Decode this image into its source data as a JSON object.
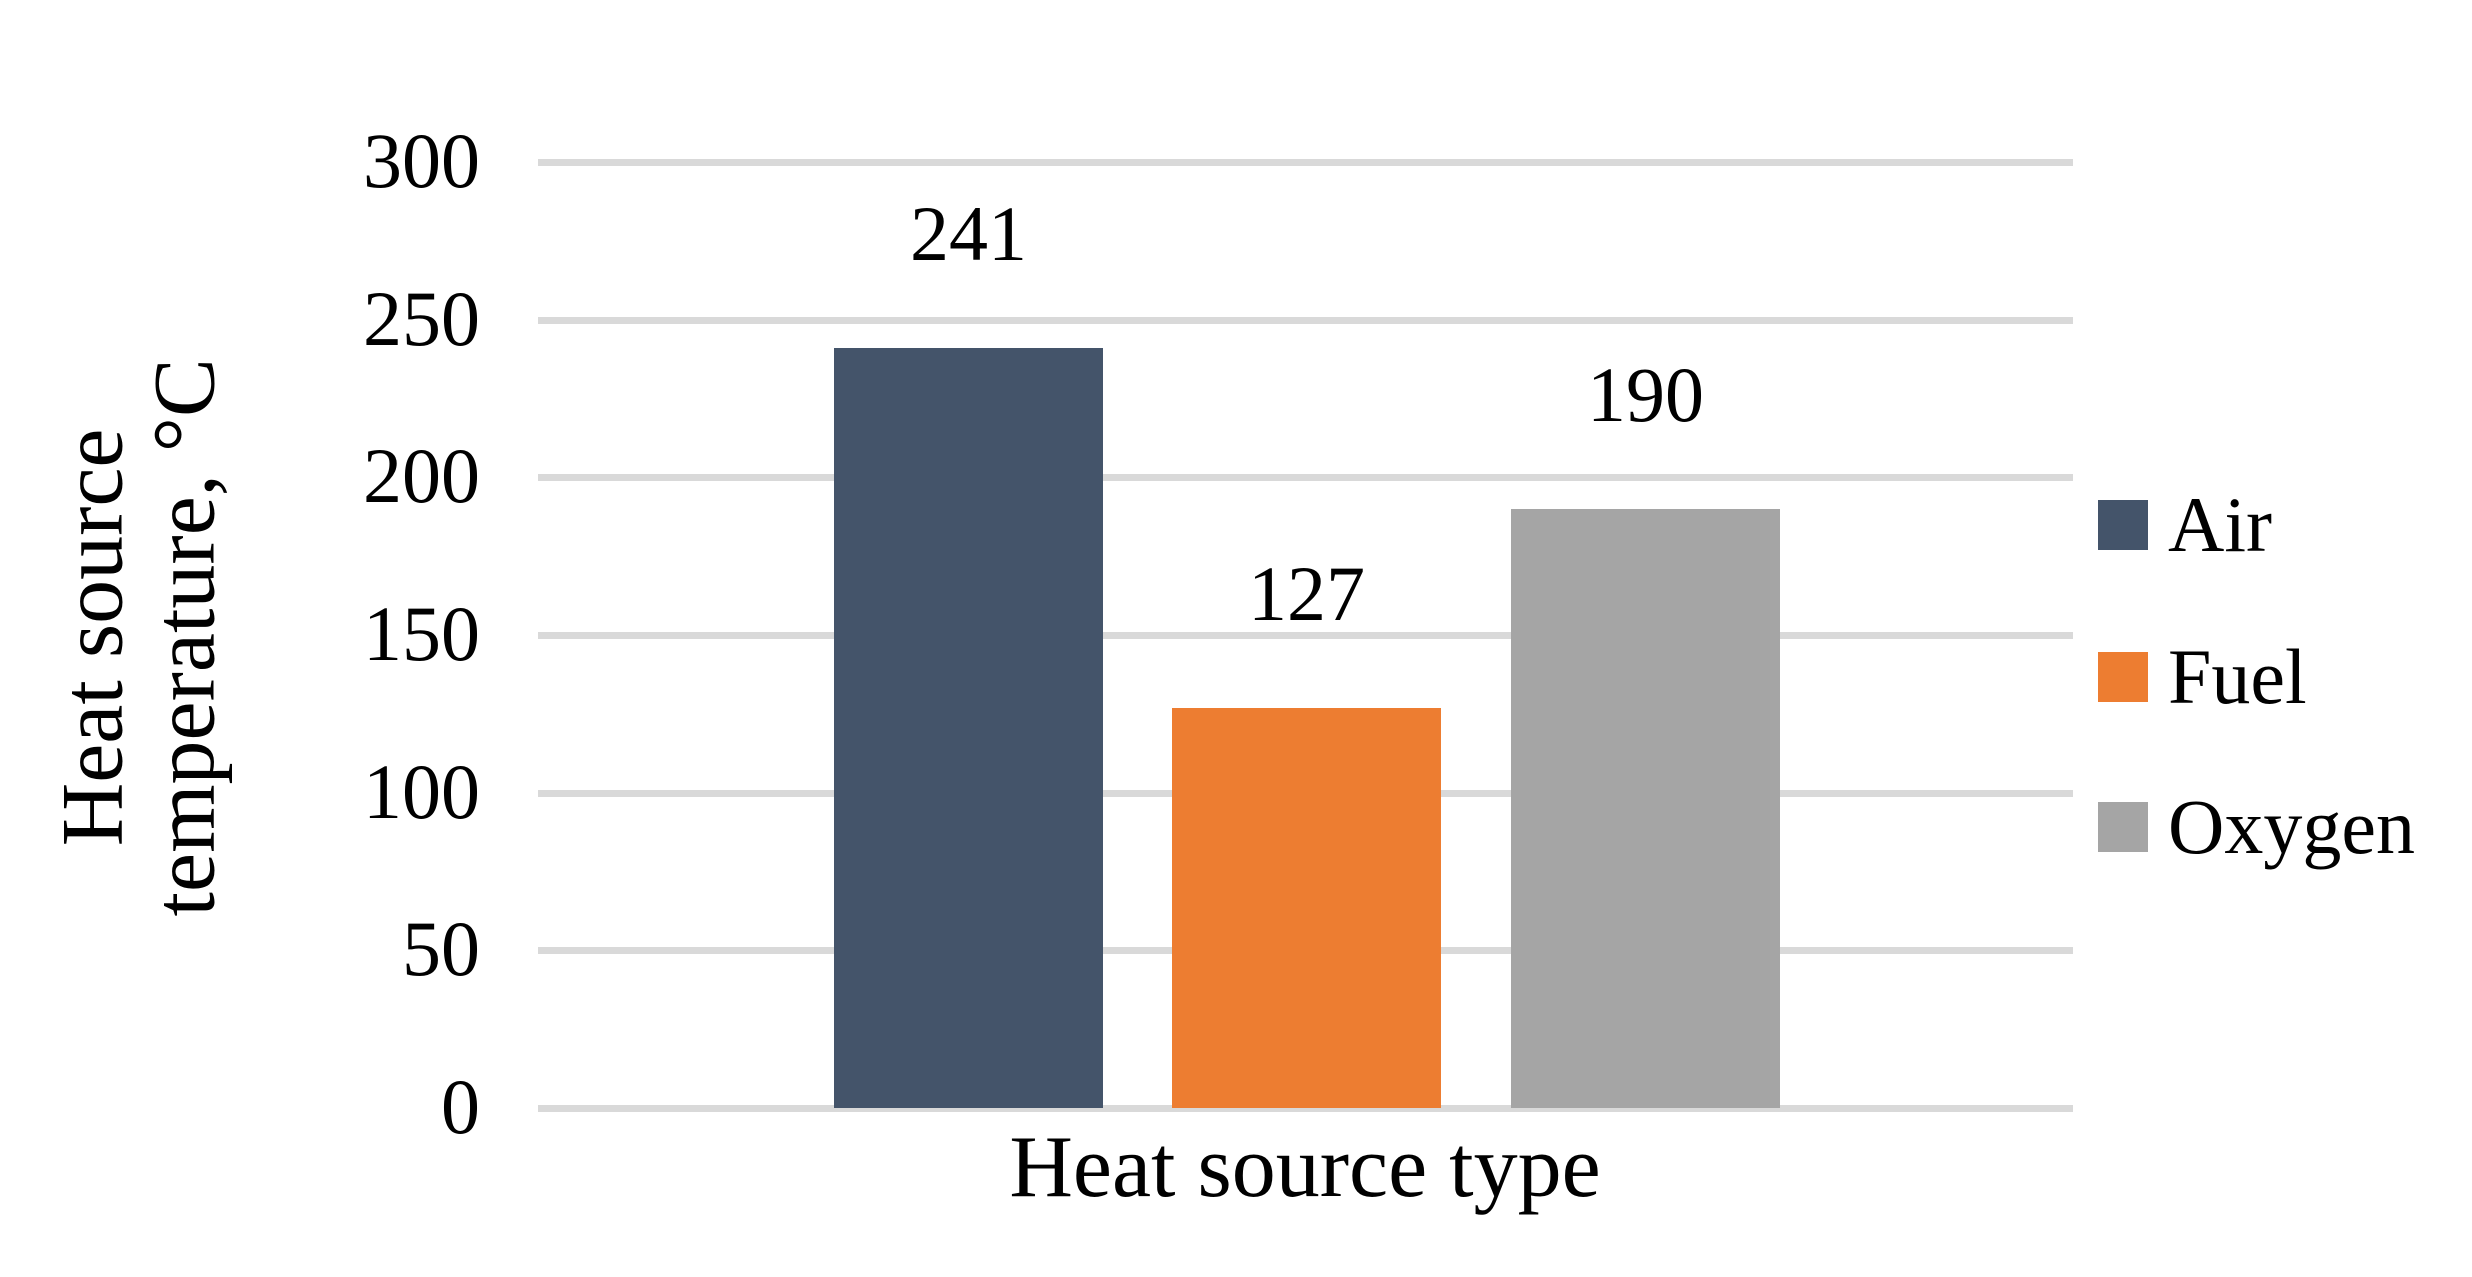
{
  "chart_data": {
    "type": "bar",
    "title": "",
    "xlabel": "Heat source type",
    "ylabel": "Heat source temperature, °C",
    "ylabel_lines": [
      "Heat source",
      "temperature, °C"
    ],
    "categories": [
      "Heat source type"
    ],
    "series": [
      {
        "name": "Air",
        "value": 241,
        "color": "#44546A"
      },
      {
        "name": "Fuel",
        "value": 127,
        "color": "#ED7D31"
      },
      {
        "name": "Oxygen",
        "value": 190,
        "color": "#A5A5A5"
      }
    ],
    "data_labels": [
      241,
      127,
      190
    ],
    "ylim": [
      0,
      300
    ],
    "yticks": [
      0,
      50,
      100,
      150,
      200,
      250,
      300
    ],
    "grid": true,
    "legend_position": "right"
  },
  "colors": {
    "gridline": "#D9D9D9",
    "text": "#000000",
    "background": "#FFFFFF"
  }
}
